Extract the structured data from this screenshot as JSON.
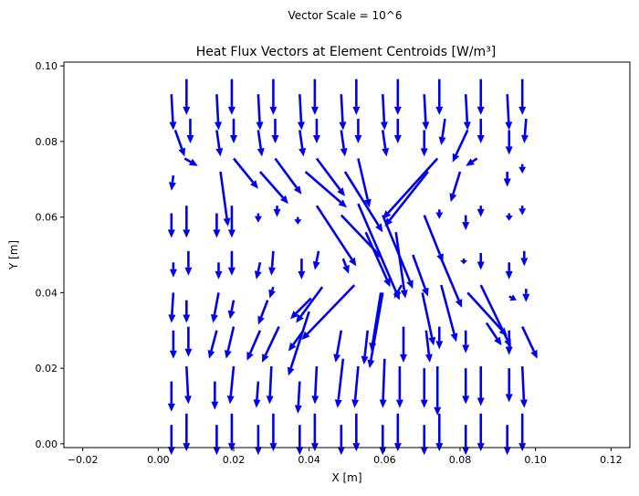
{
  "chart_data": {
    "type": "quiver",
    "suptitle": "Vector Scale = 10^6",
    "title": "Heat Flux Vectors at Element Centroids [W/m³]",
    "xlabel": "X [m]",
    "ylabel": "Y [m]",
    "xlim": [
      -0.025,
      0.125
    ],
    "ylim": [
      -0.001,
      0.101
    ],
    "xticks": [
      -0.02,
      0.0,
      0.02,
      0.04,
      0.06,
      0.08,
      0.1,
      0.12
    ],
    "yticks": [
      0.0,
      0.02,
      0.04,
      0.06,
      0.08,
      0.1
    ],
    "xtick_labels": [
      "−0.02",
      "0.00",
      "0.02",
      "0.04",
      "0.06",
      "0.08",
      "0.10",
      "0.12"
    ],
    "ytick_labels": [
      "0.00",
      "0.02",
      "0.04",
      "0.06",
      "0.08",
      "0.10"
    ],
    "grid": false,
    "arrow_color": "#0000ee",
    "vectors": [
      {
        "x": 0.0035,
        "y": 0.0925,
        "dx": 0.0005,
        "dy": -0.0095
      },
      {
        "x": 0.0075,
        "y": 0.0965,
        "dx": 0.0,
        "dy": -0.0095
      },
      {
        "x": 0.0155,
        "y": 0.0925,
        "dx": 0.0005,
        "dy": -0.0095
      },
      {
        "x": 0.0195,
        "y": 0.0965,
        "dx": 0.0,
        "dy": -0.0095
      },
      {
        "x": 0.0265,
        "y": 0.0925,
        "dx": 0.0005,
        "dy": -0.0095
      },
      {
        "x": 0.0305,
        "y": 0.0965,
        "dx": 0.0,
        "dy": -0.0095
      },
      {
        "x": 0.0375,
        "y": 0.0925,
        "dx": 0.0005,
        "dy": -0.0095
      },
      {
        "x": 0.0415,
        "y": 0.0965,
        "dx": 0.0,
        "dy": -0.0095
      },
      {
        "x": 0.0485,
        "y": 0.0925,
        "dx": 0.0005,
        "dy": -0.0095
      },
      {
        "x": 0.0525,
        "y": 0.0965,
        "dx": 0.0,
        "dy": -0.0095
      },
      {
        "x": 0.0595,
        "y": 0.0925,
        "dx": 0.0005,
        "dy": -0.0095
      },
      {
        "x": 0.0635,
        "y": 0.0965,
        "dx": 0.0,
        "dy": -0.0095
      },
      {
        "x": 0.0705,
        "y": 0.0925,
        "dx": 0.0005,
        "dy": -0.0095
      },
      {
        "x": 0.0745,
        "y": 0.0965,
        "dx": 0.0,
        "dy": -0.0095
      },
      {
        "x": 0.0815,
        "y": 0.0925,
        "dx": 0.0005,
        "dy": -0.0095
      },
      {
        "x": 0.0855,
        "y": 0.0965,
        "dx": 0.0,
        "dy": -0.0095
      },
      {
        "x": 0.0925,
        "y": 0.0925,
        "dx": 0.0005,
        "dy": -0.0095
      },
      {
        "x": 0.0965,
        "y": 0.0965,
        "dx": 0.0,
        "dy": -0.0095
      },
      {
        "x": 0.0045,
        "y": 0.083,
        "dx": 0.0025,
        "dy": -0.007
      },
      {
        "x": 0.0085,
        "y": 0.086,
        "dx": 0.0,
        "dy": -0.0065
      },
      {
        "x": 0.0155,
        "y": 0.083,
        "dx": 0.001,
        "dy": -0.007
      },
      {
        "x": 0.02,
        "y": 0.086,
        "dx": 0.0,
        "dy": -0.0065
      },
      {
        "x": 0.0265,
        "y": 0.083,
        "dx": 0.001,
        "dy": -0.007
      },
      {
        "x": 0.031,
        "y": 0.086,
        "dx": 0.0,
        "dy": -0.0065
      },
      {
        "x": 0.0375,
        "y": 0.083,
        "dx": 0.001,
        "dy": -0.007
      },
      {
        "x": 0.042,
        "y": 0.086,
        "dx": 0.0,
        "dy": -0.0065
      },
      {
        "x": 0.0485,
        "y": 0.083,
        "dx": 0.001,
        "dy": -0.007
      },
      {
        "x": 0.053,
        "y": 0.086,
        "dx": 0.0,
        "dy": -0.0065
      },
      {
        "x": 0.0595,
        "y": 0.083,
        "dx": 0.001,
        "dy": -0.007
      },
      {
        "x": 0.0635,
        "y": 0.086,
        "dx": 0.0,
        "dy": -0.0065
      },
      {
        "x": 0.0705,
        "y": 0.083,
        "dx": 0.0,
        "dy": -0.007
      },
      {
        "x": 0.076,
        "y": 0.086,
        "dx": -0.001,
        "dy": -0.007
      },
      {
        "x": 0.082,
        "y": 0.083,
        "dx": -0.004,
        "dy": -0.0085
      },
      {
        "x": 0.0855,
        "y": 0.086,
        "dx": 0.0,
        "dy": -0.0065
      },
      {
        "x": 0.093,
        "y": 0.083,
        "dx": 0.0,
        "dy": -0.0065
      },
      {
        "x": 0.0975,
        "y": 0.086,
        "dx": -0.0005,
        "dy": -0.0065
      },
      {
        "x": 0.004,
        "y": 0.071,
        "dx": -0.0005,
        "dy": -0.004
      },
      {
        "x": 0.007,
        "y": 0.0755,
        "dx": 0.0035,
        "dy": -0.002
      },
      {
        "x": 0.0165,
        "y": 0.072,
        "dx": 0.002,
        "dy": -0.0145
      },
      {
        "x": 0.02,
        "y": 0.0755,
        "dx": 0.0065,
        "dy": -0.008
      },
      {
        "x": 0.027,
        "y": 0.072,
        "dx": 0.0075,
        "dy": -0.0085
      },
      {
        "x": 0.031,
        "y": 0.0755,
        "dx": 0.007,
        "dy": -0.0095
      },
      {
        "x": 0.039,
        "y": 0.072,
        "dx": 0.011,
        "dy": -0.0095
      },
      {
        "x": 0.042,
        "y": 0.0755,
        "dx": 0.0075,
        "dy": -0.01
      },
      {
        "x": 0.0495,
        "y": 0.072,
        "dx": 0.01,
        "dy": -0.016
      },
      {
        "x": 0.053,
        "y": 0.0755,
        "dx": 0.003,
        "dy": -0.013
      },
      {
        "x": 0.0715,
        "y": 0.072,
        "dx": -0.0115,
        "dy": -0.0145
      },
      {
        "x": 0.074,
        "y": 0.0755,
        "dx": -0.0145,
        "dy": -0.016
      },
      {
        "x": 0.08,
        "y": 0.072,
        "dx": -0.0025,
        "dy": -0.008
      },
      {
        "x": 0.0845,
        "y": 0.0755,
        "dx": -0.003,
        "dy": -0.002
      },
      {
        "x": 0.0925,
        "y": 0.072,
        "dx": 0.0,
        "dy": -0.004
      },
      {
        "x": 0.0965,
        "y": 0.074,
        "dx": 0.0,
        "dy": -0.0025
      },
      {
        "x": 0.0035,
        "y": 0.061,
        "dx": 0.0,
        "dy": -0.0065
      },
      {
        "x": 0.0075,
        "y": 0.063,
        "dx": 0.0,
        "dy": -0.0085
      },
      {
        "x": 0.0155,
        "y": 0.061,
        "dx": 0.0,
        "dy": -0.0065
      },
      {
        "x": 0.0195,
        "y": 0.063,
        "dx": 0.0,
        "dy": -0.0085
      },
      {
        "x": 0.0265,
        "y": 0.061,
        "dx": 0.0,
        "dy": -0.0025
      },
      {
        "x": 0.0315,
        "y": 0.063,
        "dx": 0.0,
        "dy": -0.003
      },
      {
        "x": 0.037,
        "y": 0.06,
        "dx": 0.0,
        "dy": -0.002
      },
      {
        "x": 0.042,
        "y": 0.063,
        "dx": 0.0105,
        "dy": -0.016
      },
      {
        "x": 0.0485,
        "y": 0.0605,
        "dx": 0.011,
        "dy": -0.0115
      },
      {
        "x": 0.053,
        "y": 0.0635,
        "dx": 0.011,
        "dy": -0.0255
      },
      {
        "x": 0.0595,
        "y": 0.0605,
        "dx": 0.008,
        "dy": -0.0195
      },
      {
        "x": 0.0705,
        "y": 0.0605,
        "dx": 0.005,
        "dy": -0.0125
      },
      {
        "x": 0.0745,
        "y": 0.062,
        "dx": 0.0,
        "dy": -0.0025
      },
      {
        "x": 0.0815,
        "y": 0.0605,
        "dx": 0.0,
        "dy": -0.004
      },
      {
        "x": 0.0855,
        "y": 0.063,
        "dx": 0.0,
        "dy": -0.003
      },
      {
        "x": 0.093,
        "y": 0.061,
        "dx": 0.0,
        "dy": -0.002
      },
      {
        "x": 0.0965,
        "y": 0.063,
        "dx": 0.0,
        "dy": -0.0025
      },
      {
        "x": 0.004,
        "y": 0.048,
        "dx": 0.0,
        "dy": -0.004
      },
      {
        "x": 0.008,
        "y": 0.051,
        "dx": 0.0,
        "dy": -0.0065
      },
      {
        "x": 0.016,
        "y": 0.048,
        "dx": 0.0,
        "dy": -0.0045
      },
      {
        "x": 0.0195,
        "y": 0.051,
        "dx": 0.0,
        "dy": -0.0065
      },
      {
        "x": 0.027,
        "y": 0.048,
        "dx": -0.001,
        "dy": -0.0045
      },
      {
        "x": 0.0305,
        "y": 0.051,
        "dx": -0.0005,
        "dy": -0.0065
      },
      {
        "x": 0.038,
        "y": 0.049,
        "dx": 0.0,
        "dy": -0.0055
      },
      {
        "x": 0.0425,
        "y": 0.051,
        "dx": -0.001,
        "dy": -0.005
      },
      {
        "x": 0.049,
        "y": 0.049,
        "dx": 0.0015,
        "dy": -0.004
      },
      {
        "x": 0.055,
        "y": 0.056,
        "dx": 0.0065,
        "dy": -0.0145
      },
      {
        "x": 0.063,
        "y": 0.056,
        "dx": 0.0025,
        "dy": -0.0175
      },
      {
        "x": 0.0675,
        "y": 0.05,
        "dx": 0.004,
        "dy": -0.011
      },
      {
        "x": 0.075,
        "y": 0.049,
        "dx": 0.0055,
        "dy": -0.013
      },
      {
        "x": 0.081,
        "y": 0.049,
        "dx": 0.0,
        "dy": -0.0015
      },
      {
        "x": 0.0855,
        "y": 0.0505,
        "dx": 0.0,
        "dy": -0.0045
      },
      {
        "x": 0.093,
        "y": 0.048,
        "dx": 0.0,
        "dy": -0.0045
      },
      {
        "x": 0.097,
        "y": 0.051,
        "dx": 0.0,
        "dy": -0.004
      },
      {
        "x": 0.004,
        "y": 0.04,
        "dx": -0.0005,
        "dy": -0.008
      },
      {
        "x": 0.0075,
        "y": 0.038,
        "dx": 0.0,
        "dy": -0.006
      },
      {
        "x": 0.016,
        "y": 0.04,
        "dx": -0.0015,
        "dy": -0.008
      },
      {
        "x": 0.02,
        "y": 0.038,
        "dx": -0.001,
        "dy": -0.005
      },
      {
        "x": 0.029,
        "y": 0.038,
        "dx": -0.0025,
        "dy": -0.0065
      },
      {
        "x": 0.0305,
        "y": 0.0415,
        "dx": -0.001,
        "dy": -0.003
      },
      {
        "x": 0.0405,
        "y": 0.0385,
        "dx": -0.0055,
        "dy": -0.0055
      },
      {
        "x": 0.0435,
        "y": 0.0415,
        "dx": -0.007,
        "dy": -0.0095
      },
      {
        "x": 0.052,
        "y": 0.042,
        "dx": -0.014,
        "dy": -0.0145
      },
      {
        "x": 0.0595,
        "y": 0.04,
        "dx": -0.0035,
        "dy": -0.02
      },
      {
        "x": 0.0645,
        "y": 0.042,
        "dx": -0.002,
        "dy": -0.0035
      },
      {
        "x": 0.07,
        "y": 0.04,
        "dx": 0.003,
        "dy": -0.014
      },
      {
        "x": 0.075,
        "y": 0.042,
        "dx": 0.004,
        "dy": -0.015
      },
      {
        "x": 0.082,
        "y": 0.04,
        "dx": 0.0105,
        "dy": -0.0115
      },
      {
        "x": 0.0855,
        "y": 0.042,
        "dx": 0.008,
        "dy": -0.0165
      },
      {
        "x": 0.093,
        "y": 0.039,
        "dx": 0.002,
        "dy": -0.001
      },
      {
        "x": 0.0975,
        "y": 0.041,
        "dx": 0.0,
        "dy": -0.0035
      },
      {
        "x": 0.004,
        "y": 0.03,
        "dx": 0.0,
        "dy": -0.0075
      },
      {
        "x": 0.008,
        "y": 0.031,
        "dx": 0.0,
        "dy": -0.008
      },
      {
        "x": 0.0155,
        "y": 0.03,
        "dx": -0.002,
        "dy": -0.0075
      },
      {
        "x": 0.02,
        "y": 0.031,
        "dx": -0.002,
        "dy": -0.0085
      },
      {
        "x": 0.027,
        "y": 0.03,
        "dx": -0.0035,
        "dy": -0.008
      },
      {
        "x": 0.032,
        "y": 0.031,
        "dx": -0.0045,
        "dy": -0.0095
      },
      {
        "x": 0.0385,
        "y": 0.03,
        "dx": -0.004,
        "dy": -0.0055
      },
      {
        "x": 0.04,
        "y": 0.035,
        "dx": -0.0055,
        "dy": -0.017
      },
      {
        "x": 0.0485,
        "y": 0.03,
        "dx": -0.0015,
        "dy": -0.0085
      },
      {
        "x": 0.0555,
        "y": 0.03,
        "dx": -0.001,
        "dy": -0.009
      },
      {
        "x": 0.059,
        "y": 0.04,
        "dx": -0.0025,
        "dy": -0.0155
      },
      {
        "x": 0.065,
        "y": 0.031,
        "dx": 0.0,
        "dy": -0.0095
      },
      {
        "x": 0.071,
        "y": 0.03,
        "dx": 0.001,
        "dy": -0.0085
      },
      {
        "x": 0.0745,
        "y": 0.031,
        "dx": 0.0,
        "dy": -0.006
      },
      {
        "x": 0.0815,
        "y": 0.03,
        "dx": 0.0,
        "dy": -0.006
      },
      {
        "x": 0.087,
        "y": 0.032,
        "dx": 0.004,
        "dy": -0.006
      },
      {
        "x": 0.093,
        "y": 0.03,
        "dx": 0.0,
        "dy": -0.0065
      },
      {
        "x": 0.0965,
        "y": 0.031,
        "dx": 0.004,
        "dy": -0.0085
      },
      {
        "x": 0.0035,
        "y": 0.0165,
        "dx": 0.0,
        "dy": -0.008
      },
      {
        "x": 0.0075,
        "y": 0.0205,
        "dx": 0.0005,
        "dy": -0.01
      },
      {
        "x": 0.015,
        "y": 0.0165,
        "dx": 0.0,
        "dy": -0.0075
      },
      {
        "x": 0.02,
        "y": 0.0205,
        "dx": -0.001,
        "dy": -0.01
      },
      {
        "x": 0.0265,
        "y": 0.0165,
        "dx": -0.0005,
        "dy": -0.007
      },
      {
        "x": 0.03,
        "y": 0.0205,
        "dx": -0.0005,
        "dy": -0.01
      },
      {
        "x": 0.0375,
        "y": 0.0165,
        "dx": -0.0005,
        "dy": -0.0085
      },
      {
        "x": 0.042,
        "y": 0.0205,
        "dx": -0.0005,
        "dy": -0.01
      },
      {
        "x": 0.049,
        "y": 0.0225,
        "dx": -0.0015,
        "dy": -0.013
      },
      {
        "x": 0.053,
        "y": 0.0205,
        "dx": -0.001,
        "dy": -0.011
      },
      {
        "x": 0.06,
        "y": 0.0225,
        "dx": -0.0005,
        "dy": -0.013
      },
      {
        "x": 0.064,
        "y": 0.0205,
        "dx": 0.0,
        "dy": -0.011
      },
      {
        "x": 0.0705,
        "y": 0.02,
        "dx": 0.0,
        "dy": -0.0105
      },
      {
        "x": 0.074,
        "y": 0.0205,
        "dx": 0.0,
        "dy": -0.013
      },
      {
        "x": 0.0815,
        "y": 0.02,
        "dx": 0.0,
        "dy": -0.0095
      },
      {
        "x": 0.0855,
        "y": 0.0205,
        "dx": 0.0,
        "dy": -0.0105
      },
      {
        "x": 0.093,
        "y": 0.02,
        "dx": 0.0,
        "dy": -0.009
      },
      {
        "x": 0.0965,
        "y": 0.0205,
        "dx": 0.0005,
        "dy": -0.011
      },
      {
        "x": 0.0035,
        "y": 0.005,
        "dx": 0.0,
        "dy": -0.008
      },
      {
        "x": 0.0075,
        "y": 0.008,
        "dx": 0.0,
        "dy": -0.01
      },
      {
        "x": 0.0155,
        "y": 0.005,
        "dx": 0.0,
        "dy": -0.008
      },
      {
        "x": 0.0195,
        "y": 0.008,
        "dx": 0.0,
        "dy": -0.01
      },
      {
        "x": 0.0265,
        "y": 0.005,
        "dx": 0.0,
        "dy": -0.008
      },
      {
        "x": 0.0305,
        "y": 0.008,
        "dx": 0.0,
        "dy": -0.01
      },
      {
        "x": 0.0375,
        "y": 0.005,
        "dx": 0.0,
        "dy": -0.008
      },
      {
        "x": 0.0415,
        "y": 0.008,
        "dx": 0.0,
        "dy": -0.01
      },
      {
        "x": 0.0485,
        "y": 0.005,
        "dx": 0.0,
        "dy": -0.008
      },
      {
        "x": 0.0525,
        "y": 0.008,
        "dx": 0.0,
        "dy": -0.01
      },
      {
        "x": 0.0595,
        "y": 0.005,
        "dx": 0.0,
        "dy": -0.008
      },
      {
        "x": 0.0635,
        "y": 0.008,
        "dx": 0.0,
        "dy": -0.01
      },
      {
        "x": 0.0705,
        "y": 0.005,
        "dx": 0.0,
        "dy": -0.008
      },
      {
        "x": 0.0745,
        "y": 0.008,
        "dx": 0.0,
        "dy": -0.01
      },
      {
        "x": 0.0815,
        "y": 0.005,
        "dx": 0.0,
        "dy": -0.008
      },
      {
        "x": 0.0855,
        "y": 0.008,
        "dx": 0.0,
        "dy": -0.01
      },
      {
        "x": 0.0925,
        "y": 0.005,
        "dx": 0.0,
        "dy": -0.008
      },
      {
        "x": 0.0965,
        "y": 0.008,
        "dx": 0.0,
        "dy": -0.01
      }
    ]
  }
}
